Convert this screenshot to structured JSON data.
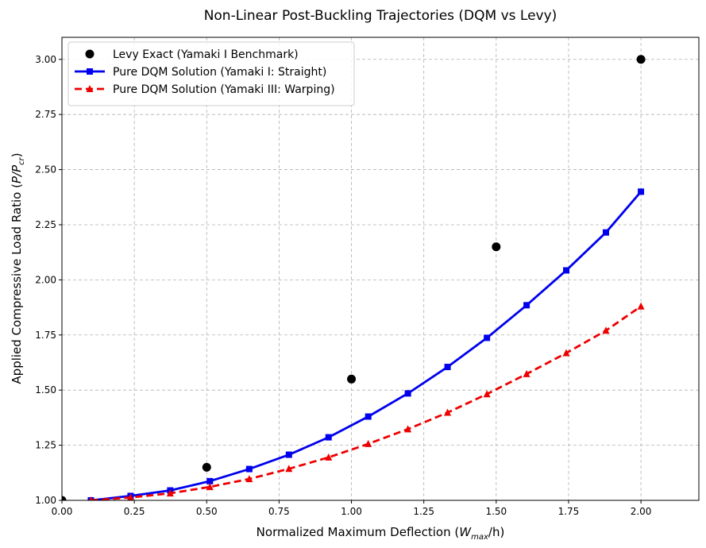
{
  "chart_data": {
    "type": "line",
    "title": "Non-Linear Post-Buckling Trajectories (DQM vs Levy)",
    "xlabel": {
      "main": "Normalized Maximum Deflection (",
      "var": "W",
      "sub": "max",
      "tail": "/h)"
    },
    "ylabel": {
      "main": "Applied Compressive Load Ratio (",
      "var": "P/P",
      "sub": "cr",
      "tail": ")"
    },
    "xlim": [
      0,
      2.2
    ],
    "ylim": [
      1.0,
      3.1
    ],
    "xticks": [
      0.0,
      0.25,
      0.5,
      0.75,
      1.0,
      1.25,
      1.5,
      1.75,
      2.0
    ],
    "xtick_labels": [
      "0.00",
      "0.25",
      "0.50",
      "0.75",
      "1.00",
      "1.25",
      "1.50",
      "1.75",
      "2.00"
    ],
    "yticks": [
      1.0,
      1.25,
      1.5,
      1.75,
      2.0,
      2.25,
      2.5,
      2.75,
      3.0
    ],
    "ytick_labels": [
      "1.00",
      "1.25",
      "1.50",
      "1.75",
      "2.00",
      "2.25",
      "2.50",
      "2.75",
      "3.00"
    ],
    "grid": true,
    "legend_position": "top-left",
    "series": [
      {
        "name": "Levy Exact (Yamaki I Benchmark)",
        "style": "points",
        "marker": "circle",
        "color": "#000000",
        "x": [
          0.0,
          0.5,
          1.0,
          1.5,
          2.0
        ],
        "y": [
          1.0,
          1.15,
          1.55,
          2.15,
          3.0
        ]
      },
      {
        "name": "Pure DQM Solution (Yamaki I: Straight)",
        "style": "solid",
        "marker": "square",
        "color": "#0000ee",
        "x": [
          0.1,
          0.237,
          0.374,
          0.511,
          0.647,
          0.784,
          0.921,
          1.058,
          1.195,
          1.332,
          1.468,
          1.605,
          1.742,
          1.879,
          2.0
        ],
        "y": [
          1.0,
          1.02,
          1.045,
          1.087,
          1.142,
          1.207,
          1.286,
          1.38,
          1.485,
          1.605,
          1.737,
          1.885,
          2.043,
          2.215,
          2.4
        ]
      },
      {
        "name": "Pure DQM Solution (Yamaki III: Warping)",
        "style": "dashed",
        "marker": "triangle",
        "color": "#ee0000",
        "x": [
          0.1,
          0.237,
          0.374,
          0.511,
          0.647,
          0.784,
          0.921,
          1.058,
          1.195,
          1.332,
          1.468,
          1.605,
          1.742,
          1.879,
          2.0
        ],
        "y": [
          1.0,
          1.013,
          1.032,
          1.061,
          1.097,
          1.143,
          1.195,
          1.256,
          1.323,
          1.398,
          1.482,
          1.573,
          1.668,
          1.77,
          1.88
        ]
      }
    ]
  }
}
